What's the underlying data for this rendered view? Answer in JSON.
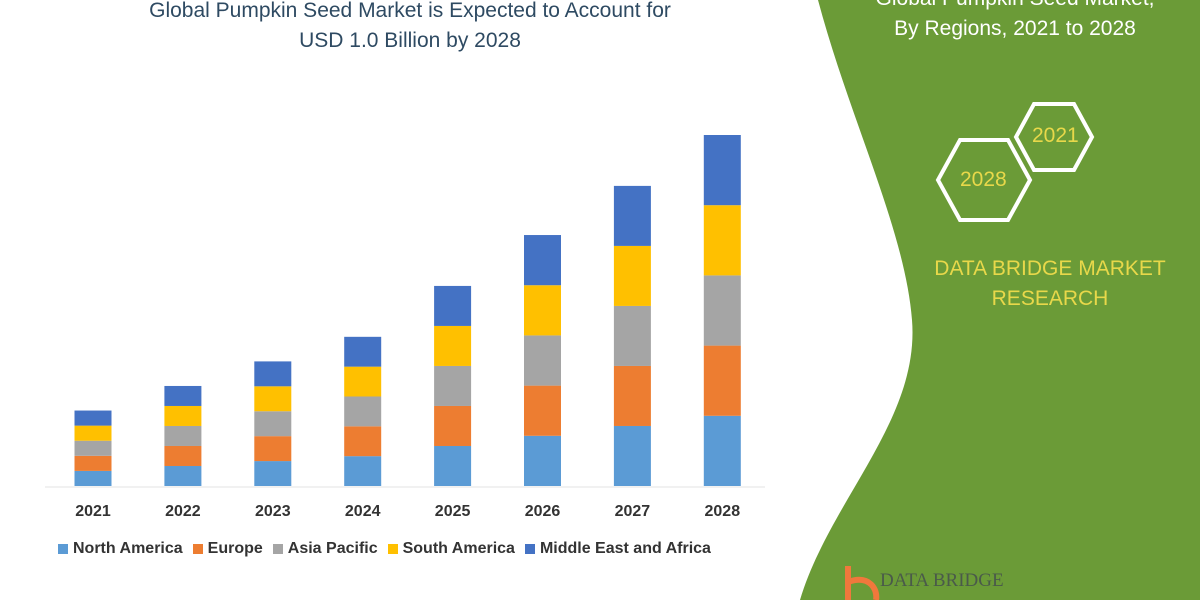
{
  "title_lines": [
    "Global Pumpkin Seed Market is Expected to Account for",
    "USD 1.0 Billion by 2028"
  ],
  "side_panel": {
    "title_lines": [
      "Global Pumpkin Seed Market,",
      "By Regions, 2021 to 2028"
    ],
    "hex_labels": [
      "2021",
      "2028"
    ],
    "brand_lines": [
      "DATA BRIDGE MARKET",
      "RESEARCH"
    ],
    "logo_text": "DATA BRIDGE",
    "panel_color": "#6b9b37",
    "accent_text_color": "#e8d84a"
  },
  "chart_data": {
    "type": "bar",
    "stacked": true,
    "title": "Global Pumpkin Seed Market is Expected to Account for USD 1.0 Billion by 2028",
    "categories": [
      "2021",
      "2022",
      "2023",
      "2024",
      "2025",
      "2026",
      "2027",
      "2028"
    ],
    "ylim": [
      0,
      1.0
    ],
    "grid": false,
    "legend_position": "bottom",
    "series": [
      {
        "name": "North America",
        "color": "#5b9bd5",
        "values": [
          0.043,
          0.057,
          0.071,
          0.085,
          0.114,
          0.143,
          0.171,
          0.2
        ]
      },
      {
        "name": "Europe",
        "color": "#ed7d31",
        "values": [
          0.043,
          0.057,
          0.071,
          0.085,
          0.114,
          0.143,
          0.171,
          0.2
        ]
      },
      {
        "name": "Asia Pacific",
        "color": "#a5a5a5",
        "values": [
          0.043,
          0.057,
          0.071,
          0.085,
          0.114,
          0.143,
          0.171,
          0.2
        ]
      },
      {
        "name": "South America",
        "color": "#ffc000",
        "values": [
          0.043,
          0.057,
          0.071,
          0.085,
          0.114,
          0.143,
          0.171,
          0.2
        ]
      },
      {
        "name": "Middle East and Africa",
        "color": "#4472c4",
        "values": [
          0.043,
          0.057,
          0.071,
          0.085,
          0.114,
          0.143,
          0.171,
          0.2
        ]
      }
    ]
  }
}
